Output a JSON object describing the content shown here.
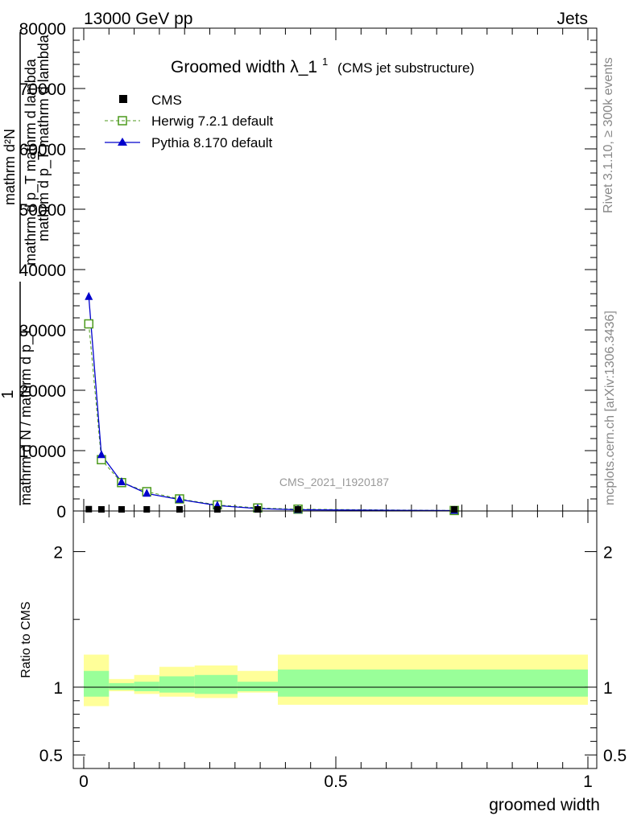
{
  "header": {
    "energy_label": "13000 GeV pp",
    "process_label": "Jets"
  },
  "side_labels": {
    "rivet": "Rivet 3.1.10, ≥ 300k events",
    "mcplots": "mcplots.cern.ch [arXiv:1306.3436]"
  },
  "chart_data": [
    {
      "type": "line",
      "title_main": "Groomed width",
      "title_lambda": "λ_1",
      "title_sup": "1",
      "title_note": "(CMS jet substructure)",
      "ylabel_numerator": "mathrm d²N",
      "ylabel_denominator": "mathrm d p_T mathrm d lambda",
      "ylabel_extra": "mathrm d p_T mathrm d lambda",
      "ylabel_prefix_one": "1",
      "ylabel_prefix_den": "mathrm d N / mathrm d p_T",
      "xlim": [
        0,
        1
      ],
      "ylim": [
        0,
        80000
      ],
      "y_ticks": [
        0,
        10000,
        20000,
        30000,
        40000,
        50000,
        60000,
        70000,
        80000
      ],
      "y_tick_labels": [
        "0",
        "10000",
        "20000",
        "30000",
        "40000",
        "50000",
        "60000",
        "70000",
        "80000"
      ],
      "analysis_id": "CMS_2021_I1920187",
      "legend": [
        {
          "name": "CMS",
          "marker": "square-filled",
          "color": "#000000"
        },
        {
          "name": "Herwig 7.2.1 default",
          "marker": "square-open",
          "color": "#4c9a1c"
        },
        {
          "name": "Pythia 8.170 default",
          "marker": "triangle",
          "color": "#0000cc"
        }
      ],
      "series": [
        {
          "name": "CMS",
          "x": [
            0.01,
            0.035,
            0.075,
            0.125,
            0.19,
            0.265,
            0.345,
            0.425,
            0.735
          ],
          "y": [
            300,
            250,
            200,
            180,
            150,
            100,
            80,
            60,
            20
          ]
        },
        {
          "name": "Herwig 7.2.1 default",
          "x": [
            0.01,
            0.035,
            0.075,
            0.125,
            0.19,
            0.265,
            0.345,
            0.425,
            0.735
          ],
          "y": [
            31000,
            8500,
            4700,
            3200,
            2000,
            1000,
            500,
            300,
            80
          ]
        },
        {
          "name": "Pythia 8.170 default",
          "x": [
            0.01,
            0.035,
            0.075,
            0.125,
            0.19,
            0.265,
            0.345,
            0.425,
            0.735
          ],
          "y": [
            35500,
            9300,
            4800,
            2900,
            1900,
            900,
            400,
            200,
            60
          ]
        }
      ]
    },
    {
      "type": "area",
      "ylabel": "Ratio to CMS",
      "xlabel": "groomed width",
      "xlim": [
        0,
        1
      ],
      "ylim": [
        0.4,
        2.3
      ],
      "y_ticks": [
        0.5,
        1,
        2
      ],
      "y_tick_labels": [
        "0.5",
        "1",
        "2"
      ],
      "x_ticks": [
        0,
        0.5,
        1
      ],
      "x_tick_labels": [
        "0",
        "0.5",
        "1"
      ],
      "bins": [
        0,
        0.05,
        0.1,
        0.15,
        0.22,
        0.305,
        0.385,
        1.0
      ],
      "band_yellow": [
        [
          0.86,
          1.24
        ],
        [
          0.97,
          1.06
        ],
        [
          0.95,
          1.09
        ],
        [
          0.93,
          1.15
        ],
        [
          0.92,
          1.16
        ],
        [
          0.96,
          1.12
        ],
        [
          0.87,
          1.24
        ]
      ],
      "band_green": [
        [
          0.93,
          1.12
        ],
        [
          0.98,
          1.03
        ],
        [
          0.97,
          1.04
        ],
        [
          0.96,
          1.08
        ],
        [
          0.95,
          1.09
        ],
        [
          0.97,
          1.04
        ],
        [
          0.93,
          1.13
        ]
      ],
      "reference": 1.0,
      "colors": {
        "yellow": "#ffff99",
        "green": "#99ff99"
      }
    }
  ]
}
